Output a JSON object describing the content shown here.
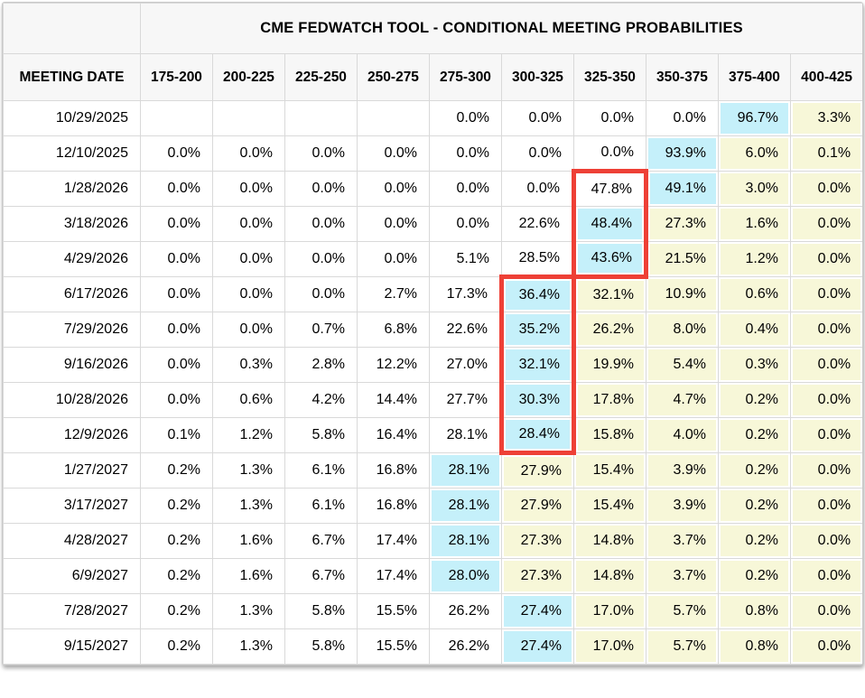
{
  "colors": {
    "highlight_blue": "#c5f0fa",
    "band_yellow": "#f7f7d8",
    "red_outline": "#ee4036",
    "header_bg": "#f7f7f7",
    "grid_line": "#d9d9d9"
  },
  "chart_data": {
    "type": "table",
    "title": "CME FEDWATCH TOOL - CONDITIONAL MEETING PROBABILITIES",
    "columns": [
      "MEETING DATE",
      "175-200",
      "200-225",
      "225-250",
      "250-275",
      "275-300",
      "300-325",
      "325-350",
      "350-375",
      "375-400",
      "400-425"
    ],
    "style_legend": {
      "w": "plain white cell",
      "b": "blue highlighted (highest probability) cell",
      "y": "yellow band cell"
    },
    "rows": [
      {
        "date": "10/29/2025",
        "values": [
          "",
          "",
          "",
          "",
          "0.0%",
          "0.0%",
          "0.0%",
          "0.0%",
          "96.7%",
          "3.3%"
        ],
        "styles": [
          "w",
          "w",
          "w",
          "w",
          "w",
          "w",
          "w",
          "w",
          "b",
          "y"
        ]
      },
      {
        "date": "12/10/2025",
        "values": [
          "0.0%",
          "0.0%",
          "0.0%",
          "0.0%",
          "0.0%",
          "0.0%",
          "0.0%",
          "93.9%",
          "6.0%",
          "0.1%"
        ],
        "styles": [
          "w",
          "w",
          "w",
          "w",
          "w",
          "w",
          "w",
          "b",
          "y",
          "y"
        ]
      },
      {
        "date": "1/28/2026",
        "values": [
          "0.0%",
          "0.0%",
          "0.0%",
          "0.0%",
          "0.0%",
          "0.0%",
          "47.8%",
          "49.1%",
          "3.0%",
          "0.0%"
        ],
        "styles": [
          "w",
          "w",
          "w",
          "w",
          "w",
          "w",
          "w",
          "b",
          "y",
          "y"
        ]
      },
      {
        "date": "3/18/2026",
        "values": [
          "0.0%",
          "0.0%",
          "0.0%",
          "0.0%",
          "0.0%",
          "22.6%",
          "48.4%",
          "27.3%",
          "1.6%",
          "0.0%"
        ],
        "styles": [
          "w",
          "w",
          "w",
          "w",
          "w",
          "w",
          "b",
          "y",
          "y",
          "y"
        ]
      },
      {
        "date": "4/29/2026",
        "values": [
          "0.0%",
          "0.0%",
          "0.0%",
          "0.0%",
          "5.1%",
          "28.5%",
          "43.6%",
          "21.5%",
          "1.2%",
          "0.0%"
        ],
        "styles": [
          "w",
          "w",
          "w",
          "w",
          "w",
          "w",
          "b",
          "y",
          "y",
          "y"
        ]
      },
      {
        "date": "6/17/2026",
        "values": [
          "0.0%",
          "0.0%",
          "0.0%",
          "2.7%",
          "17.3%",
          "36.4%",
          "32.1%",
          "10.9%",
          "0.6%",
          "0.0%"
        ],
        "styles": [
          "w",
          "w",
          "w",
          "w",
          "w",
          "b",
          "y",
          "y",
          "y",
          "y"
        ]
      },
      {
        "date": "7/29/2026",
        "values": [
          "0.0%",
          "0.0%",
          "0.7%",
          "6.8%",
          "22.6%",
          "35.2%",
          "26.2%",
          "8.0%",
          "0.4%",
          "0.0%"
        ],
        "styles": [
          "w",
          "w",
          "w",
          "w",
          "w",
          "b",
          "y",
          "y",
          "y",
          "y"
        ]
      },
      {
        "date": "9/16/2026",
        "values": [
          "0.0%",
          "0.3%",
          "2.8%",
          "12.2%",
          "27.0%",
          "32.1%",
          "19.9%",
          "5.4%",
          "0.3%",
          "0.0%"
        ],
        "styles": [
          "w",
          "w",
          "w",
          "w",
          "w",
          "b",
          "y",
          "y",
          "y",
          "y"
        ]
      },
      {
        "date": "10/28/2026",
        "values": [
          "0.0%",
          "0.6%",
          "4.2%",
          "14.4%",
          "27.7%",
          "30.3%",
          "17.8%",
          "4.7%",
          "0.2%",
          "0.0%"
        ],
        "styles": [
          "w",
          "w",
          "w",
          "w",
          "w",
          "b",
          "y",
          "y",
          "y",
          "y"
        ]
      },
      {
        "date": "12/9/2026",
        "values": [
          "0.1%",
          "1.2%",
          "5.8%",
          "16.4%",
          "28.1%",
          "28.4%",
          "15.8%",
          "4.0%",
          "0.2%",
          "0.0%"
        ],
        "styles": [
          "w",
          "w",
          "w",
          "w",
          "w",
          "b",
          "y",
          "y",
          "y",
          "y"
        ]
      },
      {
        "date": "1/27/2027",
        "values": [
          "0.2%",
          "1.3%",
          "6.1%",
          "16.8%",
          "28.1%",
          "27.9%",
          "15.4%",
          "3.9%",
          "0.2%",
          "0.0%"
        ],
        "styles": [
          "w",
          "w",
          "w",
          "w",
          "b",
          "y",
          "y",
          "y",
          "y",
          "y"
        ]
      },
      {
        "date": "3/17/2027",
        "values": [
          "0.2%",
          "1.3%",
          "6.1%",
          "16.8%",
          "28.1%",
          "27.9%",
          "15.4%",
          "3.9%",
          "0.2%",
          "0.0%"
        ],
        "styles": [
          "w",
          "w",
          "w",
          "w",
          "b",
          "y",
          "y",
          "y",
          "y",
          "y"
        ]
      },
      {
        "date": "4/28/2027",
        "values": [
          "0.2%",
          "1.6%",
          "6.7%",
          "17.4%",
          "28.1%",
          "27.3%",
          "14.8%",
          "3.7%",
          "0.2%",
          "0.0%"
        ],
        "styles": [
          "w",
          "w",
          "w",
          "w",
          "b",
          "y",
          "y",
          "y",
          "y",
          "y"
        ]
      },
      {
        "date": "6/9/2027",
        "values": [
          "0.2%",
          "1.6%",
          "6.7%",
          "17.4%",
          "28.0%",
          "27.3%",
          "14.8%",
          "3.7%",
          "0.2%",
          "0.0%"
        ],
        "styles": [
          "w",
          "w",
          "w",
          "w",
          "b",
          "y",
          "y",
          "y",
          "y",
          "y"
        ]
      },
      {
        "date": "7/28/2027",
        "values": [
          "0.2%",
          "1.3%",
          "5.8%",
          "15.5%",
          "26.2%",
          "27.4%",
          "17.0%",
          "5.7%",
          "0.8%",
          "0.0%"
        ],
        "styles": [
          "w",
          "w",
          "w",
          "w",
          "w",
          "b",
          "y",
          "y",
          "y",
          "y"
        ]
      },
      {
        "date": "9/15/2027",
        "values": [
          "0.2%",
          "1.3%",
          "5.8%",
          "15.5%",
          "26.2%",
          "27.4%",
          "17.0%",
          "5.7%",
          "0.8%",
          "0.0%"
        ],
        "styles": [
          "w",
          "w",
          "w",
          "w",
          "w",
          "b",
          "y",
          "y",
          "y",
          "y"
        ]
      }
    ],
    "red_boxes": [
      {
        "column": "325-350",
        "from_date": "1/28/2026",
        "to_date": "4/29/2026"
      },
      {
        "column": "300-325",
        "from_date": "6/17/2026",
        "to_date": "12/9/2026"
      }
    ]
  }
}
